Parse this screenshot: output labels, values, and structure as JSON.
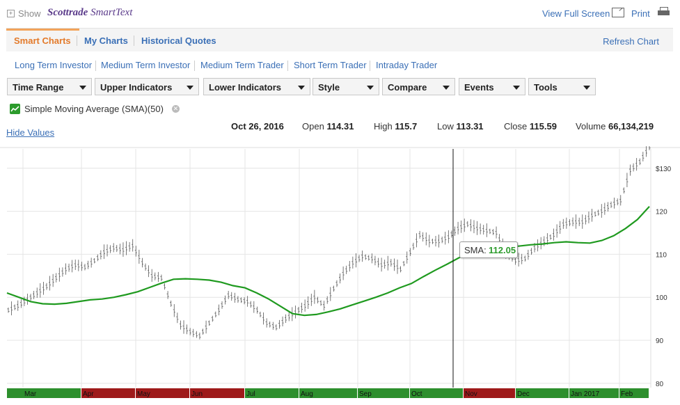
{
  "header": {
    "show_label": "Show",
    "brand": "Scottrade",
    "brand_product": "SmartText",
    "view_full_screen": "View Full Screen",
    "print": "Print"
  },
  "tabs": [
    {
      "label": "Smart Charts",
      "active": true
    },
    {
      "label": "My Charts",
      "active": false
    },
    {
      "label": "Historical Quotes",
      "active": false
    }
  ],
  "refresh_label": "Refresh Chart",
  "presets": [
    "Long Term Investor",
    "Medium Term Investor",
    "Medium Term Trader",
    "Short Term Trader",
    "Intraday Trader"
  ],
  "toolbar": [
    "Time Range",
    "Upper Indicators",
    "Lower Indicators",
    "Style",
    "Compare",
    "Events",
    "Tools"
  ],
  "indicator": {
    "label": "Simple Moving Average (SMA)(50)",
    "color": "#2c9b2c"
  },
  "hide_values": "Hide Values",
  "quote": {
    "date": "Oct 26, 2016",
    "open_label": "Open",
    "open": "114.31",
    "high_label": "High",
    "high": "115.7",
    "low_label": "Low",
    "low": "113.31",
    "close_label": "Close",
    "close": "115.59",
    "volume_label": "Volume",
    "volume": "66,134,219"
  },
  "tooltip": {
    "label": "SMA:",
    "value": "112.05"
  },
  "chart_data": {
    "type": "line",
    "title": "",
    "y_ticks": [
      "$130",
      "120",
      "110",
      "100",
      "90",
      "80"
    ],
    "y_tick_values": [
      130,
      120,
      110,
      100,
      90,
      80
    ],
    "ylim": [
      79,
      134.5
    ],
    "months": [
      {
        "label": "Mar",
        "shade": "green"
      },
      {
        "label": "Apr",
        "shade": "red"
      },
      {
        "label": "May",
        "shade": "red"
      },
      {
        "label": "Jun",
        "shade": "red"
      },
      {
        "label": "Jul",
        "shade": "green"
      },
      {
        "label": "Aug",
        "shade": "green"
      },
      {
        "label": "Sep",
        "shade": "green"
      },
      {
        "label": "Oct",
        "shade": "green"
      },
      {
        "label": "Nov",
        "shade": "red"
      },
      {
        "label": "Dec",
        "shade": "green"
      },
      {
        "label": "Jan 2017",
        "shade": "green"
      },
      {
        "label": "Feb",
        "shade": "green"
      }
    ],
    "month_colors": {
      "green": "#2d8f2d",
      "red": "#9e1a1a"
    },
    "crosshair_date": "Oct 26, 2016",
    "series": [
      {
        "name": "SMA(50)",
        "color": "#1f9a1f",
        "values": [
          101,
          100,
          99,
          98.5,
          98.4,
          98.6,
          99,
          99.4,
          99.6,
          100,
          100.6,
          101.3,
          102.3,
          103.3,
          104.2,
          104.3,
          104.2,
          104,
          103.5,
          102.7,
          102.2,
          101,
          99.6,
          97.9,
          96.2,
          95.8,
          96,
          96.6,
          97.3,
          98.2,
          99.1,
          100,
          101,
          102.2,
          103.2,
          104.8,
          106.3,
          107.7,
          109.2,
          110.5,
          111.7,
          112.2,
          111.9,
          111.9,
          112.2,
          112.4,
          112.7,
          112.9,
          112.7,
          112.6,
          113.2,
          114.3,
          116,
          118.1,
          121.1
        ]
      },
      {
        "name": "Price",
        "color": "#555555",
        "values": [
          97,
          98,
          99.5,
          101,
          102.5,
          104.5,
          106.5,
          107.5,
          107,
          108.5,
          110.5,
          111.5,
          111,
          112,
          108,
          105,
          104.5,
          98.5,
          93.5,
          92,
          91,
          94,
          97,
          100.5,
          99.5,
          99,
          97,
          94,
          93,
          95,
          96.5,
          98,
          100,
          98,
          102,
          105.5,
          108,
          109.5,
          109,
          107.5,
          108,
          106.5,
          110.5,
          114.5,
          113,
          113,
          114,
          116,
          117,
          116,
          115.5,
          115,
          110.5,
          108.5,
          109,
          111.5,
          113,
          114.5,
          117,
          117.5,
          117.5,
          119,
          120,
          121.5,
          122.5,
          129.5,
          131.5,
          135
        ]
      }
    ]
  }
}
